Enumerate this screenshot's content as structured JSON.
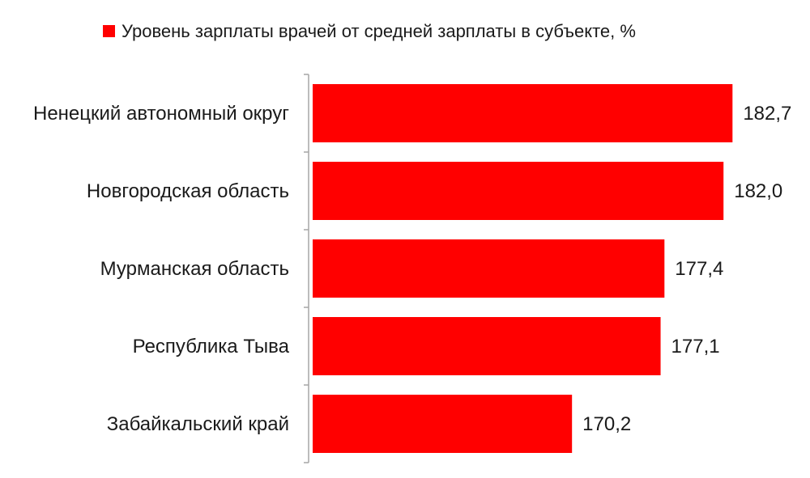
{
  "chart_data": {
    "type": "bar",
    "orientation": "horizontal",
    "categories": [
      "Ненецкий автономный округ",
      "Новгородская область",
      "Мурманская область",
      "Республика Тыва",
      "Забайкальский край"
    ],
    "series": [
      {
        "name": "Уровень зарплаты врачей от средней зарплаты в субъекте, %",
        "color": "#ff0000",
        "values": [
          182.7,
          182.0,
          177.4,
          177.1,
          170.2
        ],
        "labels": [
          "182,7",
          "182,0",
          "177,4",
          "177,1",
          "170,2"
        ]
      }
    ],
    "legend_position": "top",
    "grid": false,
    "value_axis_visible": false,
    "xlim": [
      150,
      183.5
    ]
  }
}
